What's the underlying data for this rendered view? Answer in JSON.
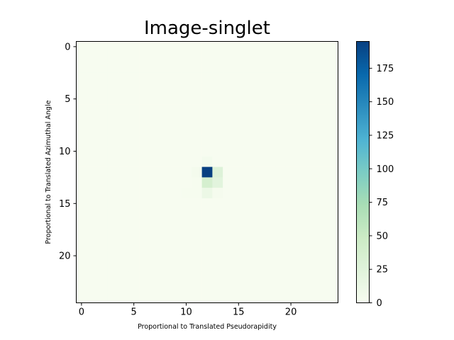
{
  "chart_data": {
    "type": "heatmap",
    "title": "Image-singlet",
    "xlabel": "Proportional to Translated Pseudorapidity",
    "ylabel": "Proportional to Translated Azimuthal Angle",
    "grid_size": [
      25,
      25
    ],
    "x_ticks": [
      0,
      5,
      10,
      15,
      20
    ],
    "y_ticks": [
      0,
      5,
      10,
      15,
      20
    ],
    "colorbar": {
      "colormap": "GnBu",
      "range": [
        0,
        195
      ],
      "ticks": [
        0,
        25,
        50,
        75,
        100,
        125,
        150,
        175
      ]
    },
    "nonzero_cells": [
      {
        "row": 11,
        "col": 12,
        "value": 4
      },
      {
        "row": 12,
        "col": 11,
        "value": 3
      },
      {
        "row": 12,
        "col": 12,
        "value": 195
      },
      {
        "row": 12,
        "col": 13,
        "value": 28
      },
      {
        "row": 13,
        "col": 11,
        "value": 1
      },
      {
        "row": 13,
        "col": 12,
        "value": 38
      },
      {
        "row": 13,
        "col": 13,
        "value": 22
      },
      {
        "row": 14,
        "col": 10,
        "value": 1
      },
      {
        "row": 14,
        "col": 11,
        "value": 1
      },
      {
        "row": 14,
        "col": 12,
        "value": 12
      },
      {
        "row": 14,
        "col": 13,
        "value": 2
      }
    ]
  }
}
